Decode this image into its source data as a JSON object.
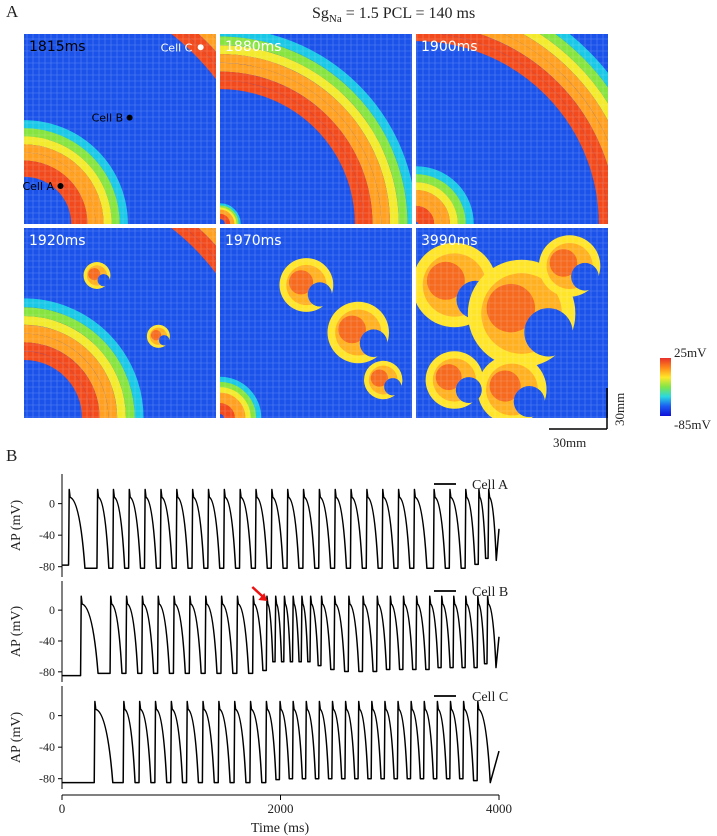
{
  "panel_a": {
    "letter": "A",
    "title_prefix": "Sg",
    "title_sub": "Na",
    "title_rest": " = 1.5  PCL = 140 ms",
    "snapshots": [
      {
        "time_label": "1815ms",
        "waves": [
          {
            "r": 0.52,
            "w": 0.46
          },
          {
            "r": 1.55,
            "w": 0.5
          }
        ]
      },
      {
        "time_label": "1880ms",
        "waves": [
          {
            "r": 0.1,
            "w": 0.12
          },
          {
            "r": 1.0,
            "w": 0.5
          },
          {
            "r": 1.95,
            "w": 0.5
          }
        ]
      },
      {
        "time_label": "1900ms",
        "waves": [
          {
            "r": 0.28,
            "w": 0.45
          },
          {
            "r": 1.25,
            "w": 0.5
          }
        ]
      },
      {
        "time_label": "1920ms",
        "waves": [
          {
            "r": 0.6,
            "w": 0.5
          },
          {
            "r": 1.55,
            "w": 0.5
          }
        ]
      },
      {
        "time_label": "1970ms",
        "waves": [
          {
            "r": 0.2,
            "w": 0.3
          }
        ]
      },
      {
        "time_label": "3990ms",
        "waves": []
      }
    ],
    "cell_labels": {
      "a": "Cell A",
      "b": "Cell B",
      "c": "Cell C"
    },
    "colorbar": {
      "max_label": "25mV",
      "min_label": "-85mV",
      "colors": [
        "#e8302a",
        "#ff8a1a",
        "#ffe82a",
        "#7fe64a",
        "#2ad8e0",
        "#1a5bf2",
        "#1010d8"
      ]
    },
    "scalebar": {
      "x_label": "30mm",
      "y_label": "30mm"
    }
  },
  "panel_b": {
    "letter": "B"
  },
  "chart_data": {
    "type": "line",
    "xlabel": "Time (ms)",
    "ylabel": "AP (mV)",
    "xlim": [
      0,
      4000
    ],
    "ylim": [
      -88,
      30
    ],
    "xticks": [
      0,
      2000,
      4000
    ],
    "yticks": [
      0,
      -40,
      -80
    ],
    "panels": [
      {
        "name": "Cell A",
        "upstrokes": [
          60,
          320,
          465,
          610,
          755,
          900,
          1045,
          1190,
          1335,
          1480,
          1625,
          1770,
          1915,
          2060,
          2205,
          2350,
          2495,
          2640,
          2785,
          2930,
          3075,
          3220,
          3400,
          3545,
          3690,
          3810,
          3900
        ],
        "pre_level": -78,
        "peak": 18,
        "trough": -82,
        "apd_first": 150
      },
      {
        "name": "Cell B",
        "upstrokes": [
          170,
          440,
          585,
          730,
          875,
          1020,
          1165,
          1310,
          1455,
          1600,
          1745,
          1870,
          1950,
          2030,
          2110,
          2190,
          2270,
          2370,
          2490,
          2620,
          2750,
          2880,
          3000,
          3120,
          3240,
          3360,
          3470,
          3580,
          3690,
          3800,
          3890
        ],
        "pre_level": -85,
        "peak": 18,
        "trough": -82,
        "apd_first": 160
      },
      {
        "name": "Cell C",
        "upstrokes": [
          295,
          560,
          705,
          850,
          995,
          1140,
          1285,
          1430,
          1575,
          1720,
          1865,
          1990,
          2110,
          2230,
          2350,
          2470,
          2590,
          2710,
          2830,
          2950,
          3070,
          3190,
          3310,
          3430,
          3550,
          3670,
          3800
        ],
        "pre_level": -85,
        "peak": 18,
        "trough": -85,
        "apd_first": 170
      }
    ],
    "annotation": {
      "panel": "Cell B",
      "x": 1870,
      "color": "#ee1111"
    }
  }
}
